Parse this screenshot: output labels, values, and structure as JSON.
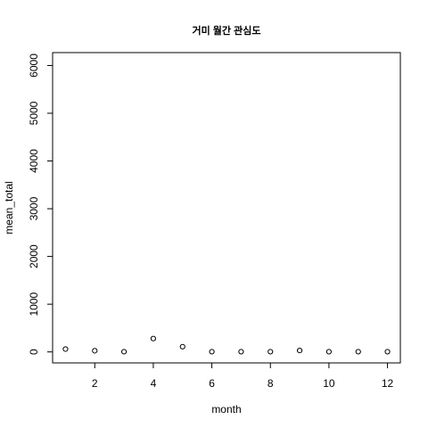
{
  "chart_data": {
    "type": "scatter",
    "title": "거미 월간 관심도",
    "xlabel": "month",
    "ylabel": "mean_total",
    "xlim": [
      0.56,
      12.44
    ],
    "ylim": [
      -230,
      6270
    ],
    "x_ticks": [
      2,
      4,
      6,
      8,
      10,
      12
    ],
    "y_ticks": [
      0,
      1000,
      2000,
      3000,
      4000,
      5000,
      6000
    ],
    "grid": false,
    "legend": "none",
    "marker": "open-circle",
    "colors": {
      "points": "#000000",
      "axes": "#000000",
      "background": "#ffffff"
    },
    "x": [
      1,
      2,
      3,
      4,
      5,
      6,
      7,
      8,
      9,
      10,
      11,
      12
    ],
    "y": [
      60,
      25,
      5,
      280,
      110,
      5,
      5,
      5,
      30,
      5,
      5,
      5
    ]
  }
}
